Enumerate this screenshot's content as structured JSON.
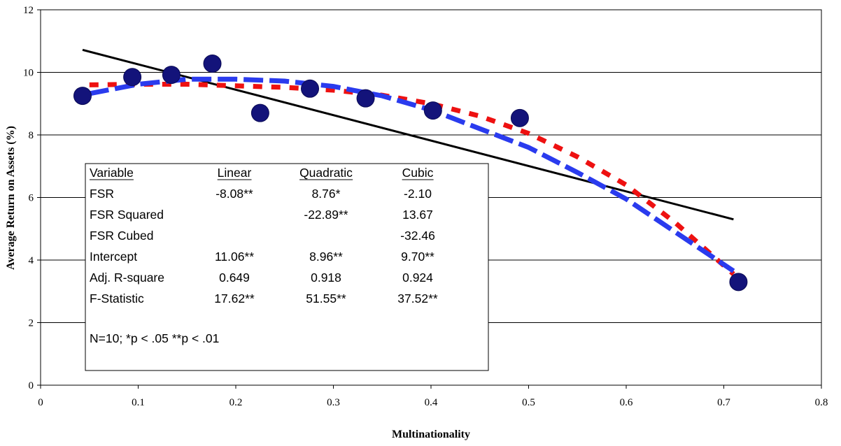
{
  "chart_data": {
    "type": "scatter",
    "title": "",
    "xlabel": "Multinationality",
    "ylabel": "Average Return on Assets (%)",
    "xlim": [
      0,
      0.8
    ],
    "ylim": [
      0,
      12
    ],
    "x_ticks": [
      "0",
      "0.1",
      "0.2",
      "0.3",
      "0.4",
      "0.5",
      "0.6",
      "0.7",
      "0.8"
    ],
    "y_ticks": [
      "0",
      "2",
      "4",
      "6",
      "8",
      "10",
      "12"
    ],
    "grid": "horizontal",
    "points": {
      "x": [
        0.043,
        0.094,
        0.134,
        0.176,
        0.225,
        0.276,
        0.333,
        0.402,
        0.491,
        0.715
      ],
      "y": [
        9.25,
        9.85,
        9.92,
        10.28,
        8.7,
        9.48,
        9.17,
        8.78,
        8.54,
        3.3
      ]
    },
    "series": [
      {
        "fit": "linear",
        "style": "solid",
        "color": "#000000",
        "x": [
          0.043,
          0.71
        ],
        "y": [
          10.72,
          5.3
        ]
      },
      {
        "fit": "quadratic",
        "style": "dashed",
        "color": "#ee1111",
        "x": [
          0.05,
          0.1,
          0.15,
          0.2,
          0.25,
          0.3,
          0.35,
          0.4,
          0.45,
          0.5,
          0.55,
          0.6,
          0.65,
          0.71
        ],
        "y": [
          9.6,
          9.62,
          9.62,
          9.57,
          9.52,
          9.43,
          9.27,
          9.0,
          8.6,
          8.05,
          7.3,
          6.4,
          5.2,
          3.55
        ]
      },
      {
        "fit": "cubic",
        "style": "dashed",
        "color": "#2a3bee",
        "x": [
          0.05,
          0.1,
          0.15,
          0.2,
          0.25,
          0.3,
          0.35,
          0.4,
          0.45,
          0.5,
          0.55,
          0.6,
          0.65,
          0.71
        ],
        "y": [
          9.32,
          9.62,
          9.78,
          9.78,
          9.72,
          9.55,
          9.25,
          8.8,
          8.2,
          7.6,
          6.8,
          5.95,
          4.9,
          3.65
        ]
      }
    ],
    "annotation_table": {
      "headers": [
        "Variable",
        "Linear",
        "Quadratic",
        "Cubic"
      ],
      "rows": [
        [
          "FSR",
          "-8.08**",
          "8.76*",
          "-2.10"
        ],
        [
          "FSR Squared",
          "",
          "-22.89**",
          "13.67"
        ],
        [
          "FSR Cubed",
          "",
          "",
          "-32.46"
        ],
        [
          "Intercept",
          "11.06**",
          "8.96**",
          "9.70**"
        ],
        [
          "Adj. R-square",
          "0.649",
          "0.918",
          "0.924"
        ],
        [
          "F-Statistic",
          "17.62**",
          "51.55**",
          "37.52**"
        ]
      ],
      "note": "N=10;  *p < .05  **p < .01"
    }
  }
}
